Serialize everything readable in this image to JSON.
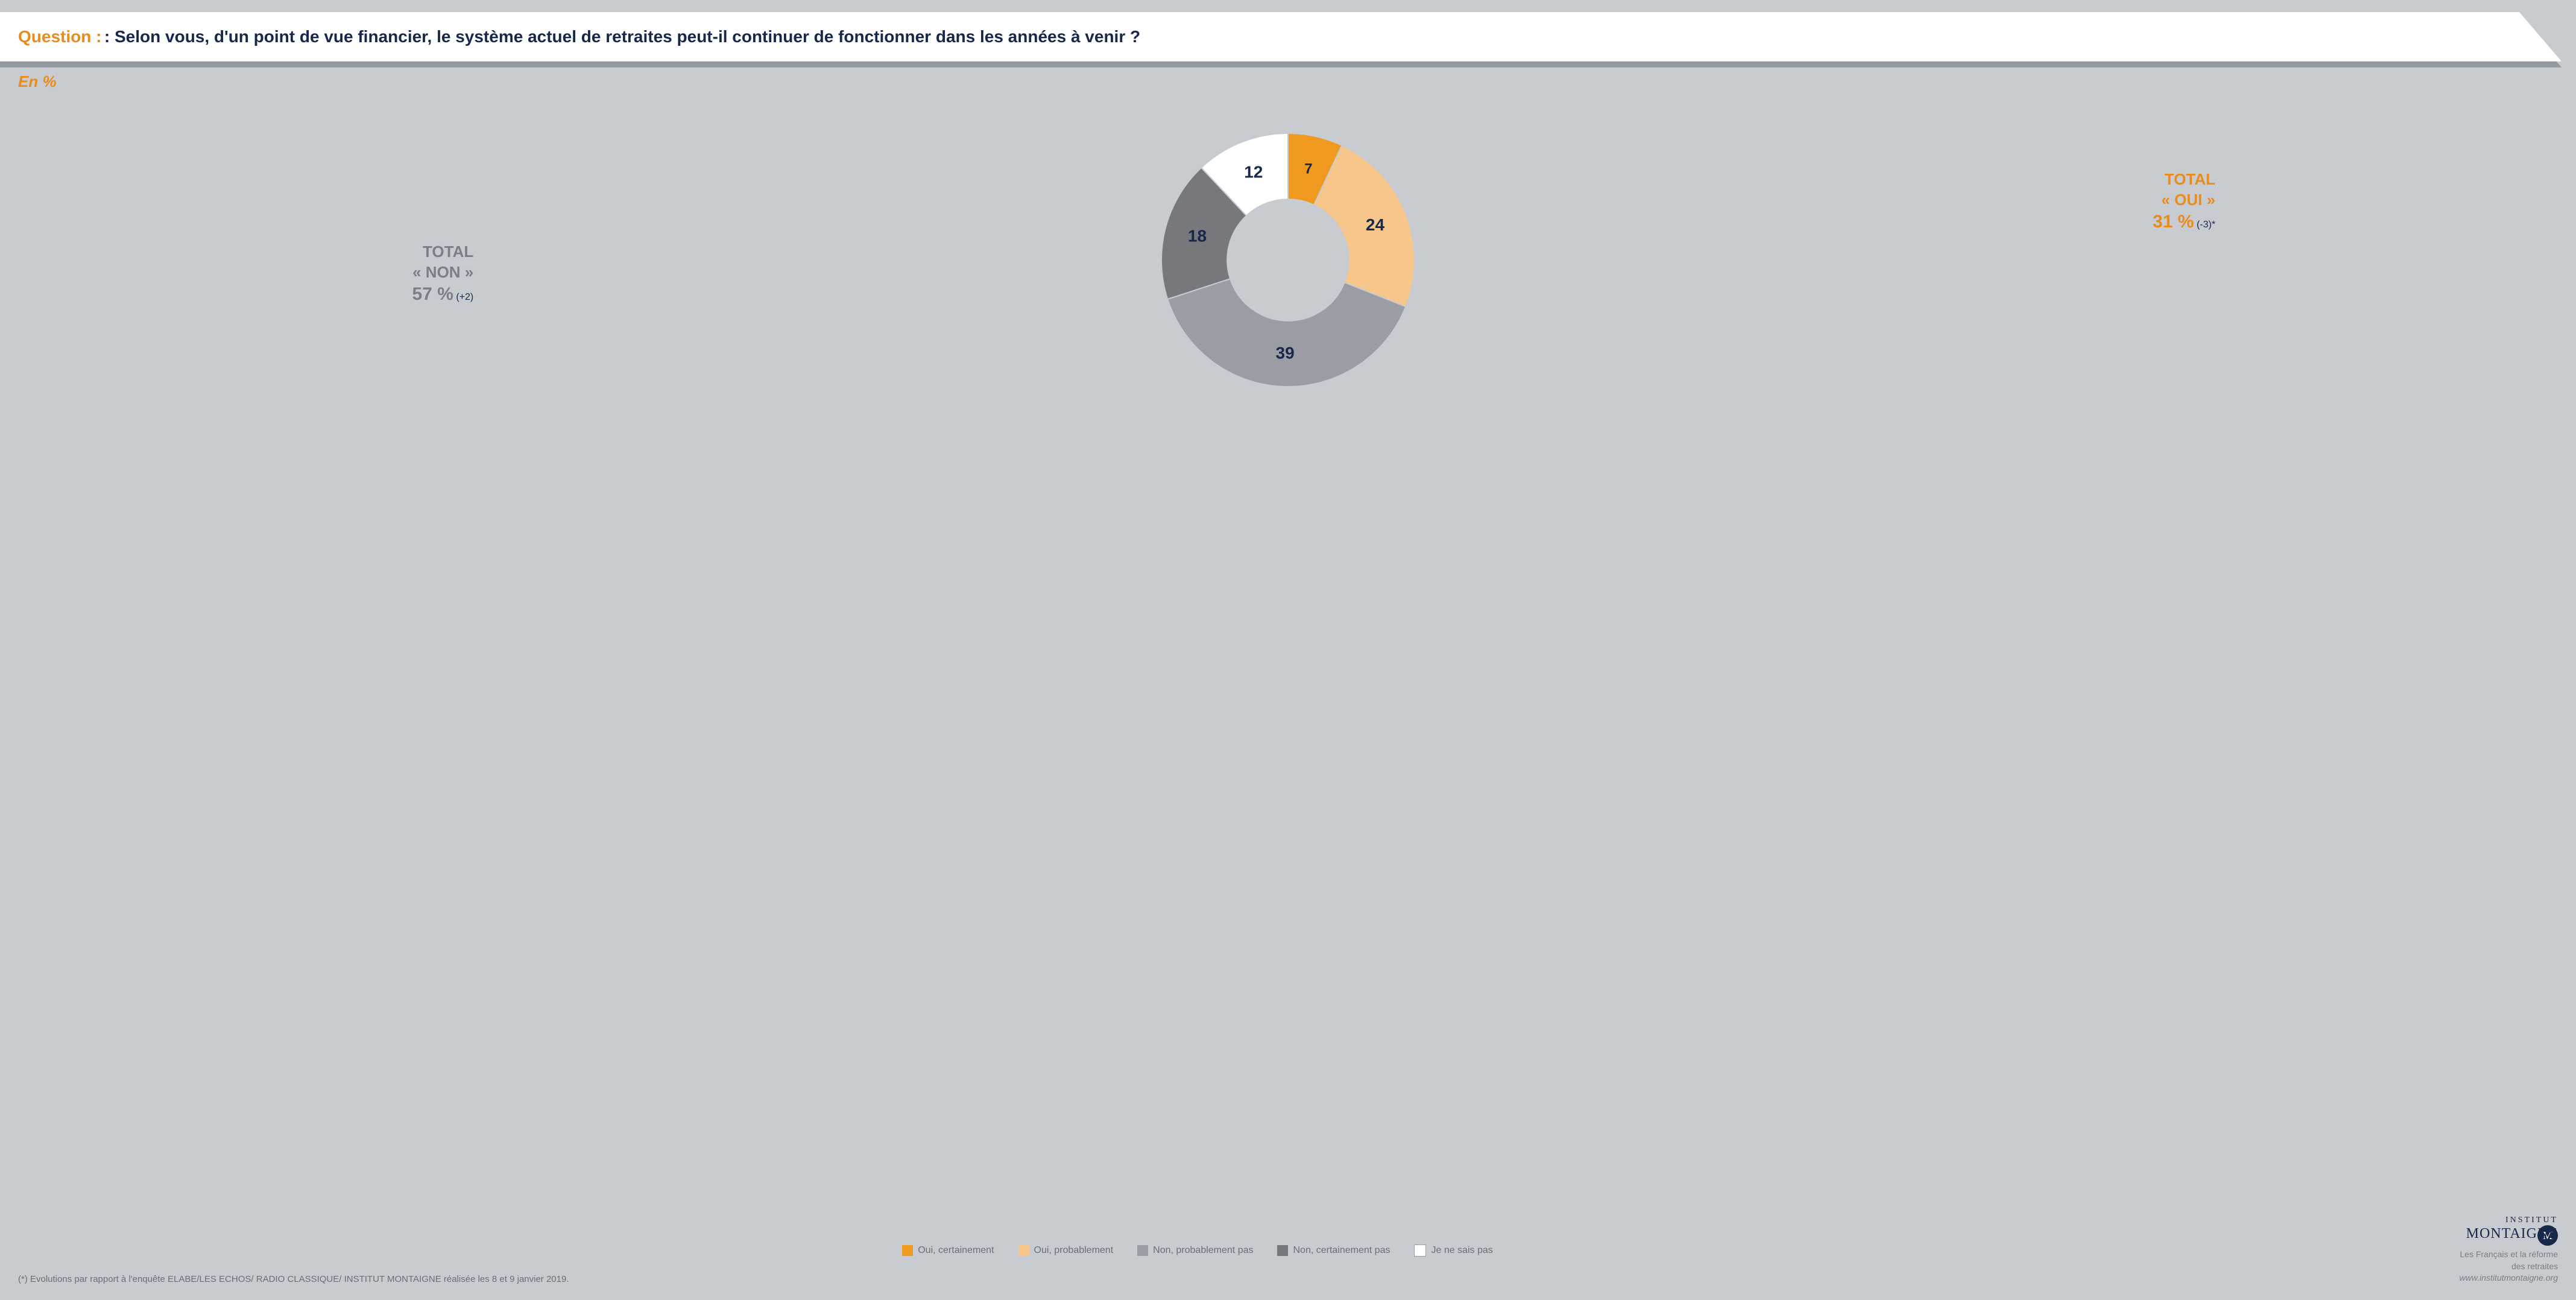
{
  "header": {
    "question_prefix": "Question :",
    "question_text": " : Selon vous, d'un point de vue financier, le système actuel de retraites peut-il continuer de fonctionner dans les années à venir ?"
  },
  "unit_label": "En %",
  "donut": {
    "type": "donut",
    "inner_radius_ratio": 0.48,
    "slices": [
      {
        "key": "oui_cert",
        "label": "Oui, certainement",
        "value": 7,
        "color": "#ef9a1f",
        "text_color": "#17284b",
        "label_font": 24
      },
      {
        "key": "oui_prob",
        "label": "Oui, probablement",
        "value": 24,
        "color": "#f7c68b",
        "text_color": "#17284b",
        "label_font": 28
      },
      {
        "key": "non_prob",
        "label": "Non, probablement pas",
        "value": 39,
        "color": "#9a9ea4",
        "text_color": "#17284b",
        "label_font": 28
      },
      {
        "key": "non_cert",
        "label": "Non, certainement pas",
        "value": 18,
        "color": "#76787c",
        "text_color": "#17284b",
        "label_font": 28
      },
      {
        "key": "nsp",
        "label": "Je ne sais pas",
        "value": 12,
        "color": "#ffffff",
        "text_color": "#17284b",
        "label_font": 28
      }
    ],
    "start_angle_deg": -90,
    "stroke": "#c8ccd0",
    "stroke_width": 2
  },
  "totals": {
    "oui": {
      "line1": "TOTAL",
      "line2": "« OUI »",
      "value": "31 %",
      "delta": "(-3)*",
      "color": "#e98b1d"
    },
    "non": {
      "line1": "TOTAL",
      "line2": "« NON »",
      "value": "57 %",
      "delta": "(+2)",
      "color": "#7b7f85"
    }
  },
  "legend_order": [
    "oui_cert",
    "oui_prob",
    "non_prob",
    "non_cert",
    "nsp"
  ],
  "footnote": "(*) Evolutions par rapport à l'enquête ELABE/LES ECHOS/ RADIO CLASSIQUE/ INSTITUT MONTAIGNE réalisée les 8 et 9 janvier 2019.",
  "footer": {
    "institute_top": "INSTITUT",
    "institute_bottom": "MONTAIGNE",
    "tagline1": "Les Français et la réforme",
    "tagline2": "des retraites",
    "url": "www.institutmontaigne.org",
    "logo_letter": "M"
  }
}
